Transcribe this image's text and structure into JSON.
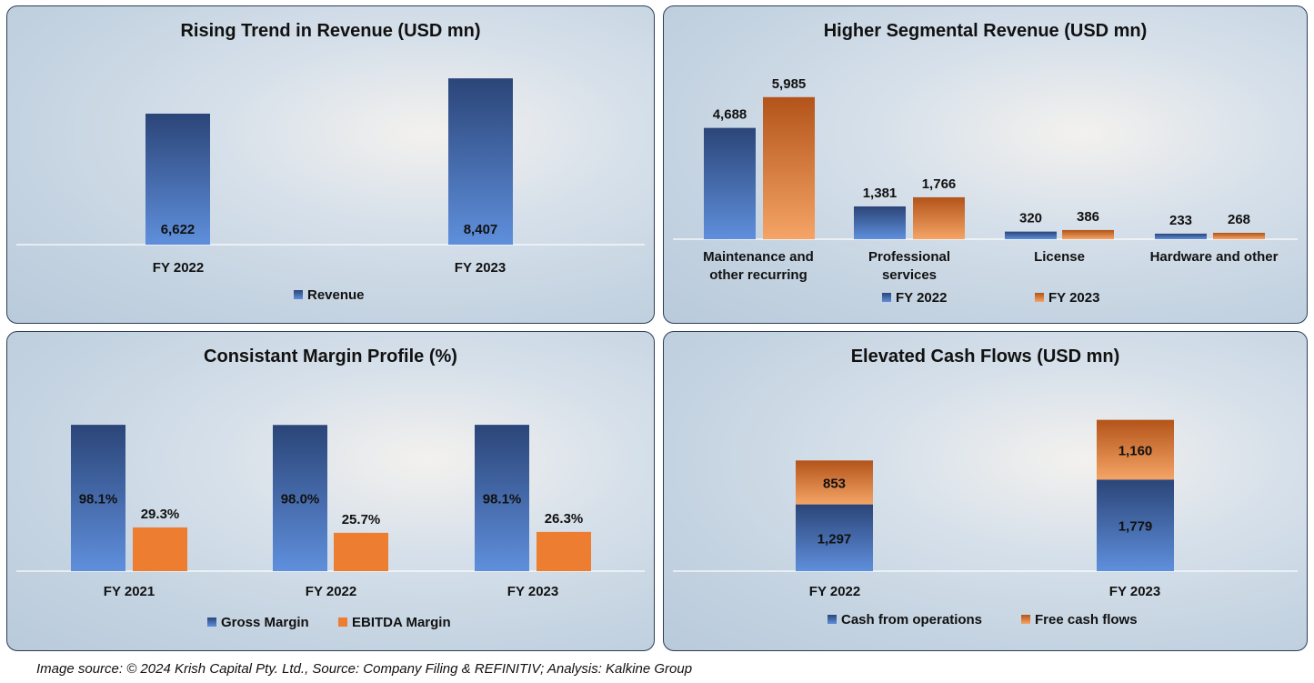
{
  "colors": {
    "blue": "#3d64a8",
    "orange": "#e8782f",
    "border": "#2d3e55"
  },
  "chart_data": [
    {
      "id": "revenue",
      "type": "bar",
      "title": "Rising Trend in Revenue (USD mn)",
      "categories": [
        "FY 2022",
        "FY 2023"
      ],
      "series": [
        {
          "name": "Revenue",
          "values": [
            6622,
            8407
          ],
          "labels": [
            "6,622",
            "8,407"
          ],
          "color": "blue"
        }
      ],
      "legend": "bottom"
    },
    {
      "id": "segment",
      "type": "bar",
      "title": "Higher Segmental Revenue (USD mn)",
      "categories": [
        [
          "Maintenance and",
          "other recurring"
        ],
        [
          "Professional",
          "services"
        ],
        [
          "License"
        ],
        [
          "Hardware and other"
        ]
      ],
      "series": [
        {
          "name": "FY 2022",
          "values": [
            4688,
            1381,
            320,
            233
          ],
          "labels": [
            "4,688",
            "1,381",
            "320",
            "233"
          ],
          "color": "blue"
        },
        {
          "name": "FY 2023",
          "values": [
            5985,
            1766,
            386,
            268
          ],
          "labels": [
            "5,985",
            "1,766",
            "386",
            "268"
          ],
          "color": "orange"
        }
      ],
      "legend": "bottom"
    },
    {
      "id": "margin",
      "type": "bar",
      "title": "Consistant Margin Profile (%)",
      "categories": [
        "FY 2021",
        "FY 2022",
        "FY 2023"
      ],
      "series": [
        {
          "name": "Gross Margin",
          "values": [
            98.1,
            98.0,
            98.1
          ],
          "labels": [
            "98.1%",
            "98.0%",
            "98.1%"
          ],
          "color": "blue"
        },
        {
          "name": "EBITDA Margin",
          "values": [
            29.3,
            25.7,
            26.3
          ],
          "labels": [
            "29.3%",
            "25.7%",
            "26.3%"
          ],
          "color": "orange"
        }
      ],
      "legend": "bottom"
    },
    {
      "id": "cash",
      "type": "bar",
      "stacked": true,
      "title": "Elevated Cash Flows (USD mn)",
      "categories": [
        "FY 2022",
        "FY 2023"
      ],
      "series": [
        {
          "name": "Cash from operations",
          "values": [
            1297,
            1779
          ],
          "labels": [
            "1,297",
            "1,779"
          ],
          "color": "blue"
        },
        {
          "name": "Free cash flows",
          "values": [
            853,
            1160
          ],
          "labels": [
            "853",
            "1,160"
          ],
          "color": "orange"
        }
      ],
      "legend": "bottom"
    }
  ],
  "footer": "Image source: © 2024 Krish Capital Pty. Ltd., Source: Company Filing & REFINITIV; Analysis: Kalkine Group"
}
